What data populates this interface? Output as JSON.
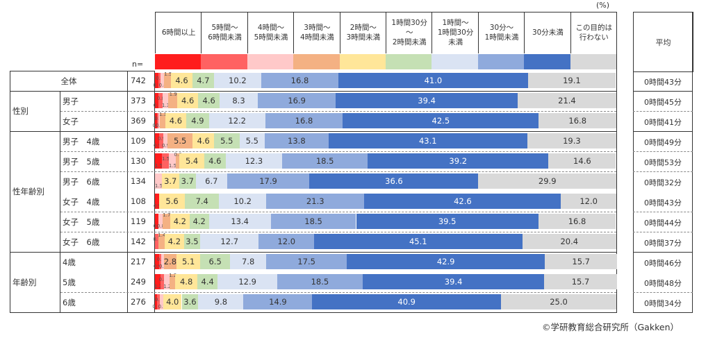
{
  "chart_data": {
    "type": "bar",
    "stacked": true,
    "orientation": "horizontal",
    "unit_label": "(%)",
    "n_label": "n=",
    "average_header": "平均",
    "categories": [
      {
        "label": "6時間以上",
        "color": "#ff1d1d"
      },
      {
        "label": "5時間～\n6時間未満",
        "color": "#ff6262"
      },
      {
        "label": "4時間～\n5時間未満",
        "color": "#ffc9c9"
      },
      {
        "label": "3時間～\n4時間未満",
        "color": "#f4b183"
      },
      {
        "label": "2時間～\n3時間未満",
        "color": "#ffe699"
      },
      {
        "label": "1時間30分\n～\n2時間未満",
        "color": "#c5e0b4"
      },
      {
        "label": "1時間～\n1時間30分\n未満",
        "color": "#dae3f3"
      },
      {
        "label": "30分～\n1時間未満",
        "color": "#8faadc"
      },
      {
        "label": "30分未満",
        "color": "#4472c4"
      },
      {
        "label": "この目的は\n行わない",
        "color": "#d9d9d9"
      }
    ],
    "groups": [
      {
        "label": "",
        "rows": [
          {
            "label": "全体",
            "n": 742,
            "values": [
              0.7,
              0.5,
              0.8,
              1.5,
              4.6,
              4.7,
              10.2,
              16.8,
              41.0,
              19.1
            ],
            "average": "0時間43分"
          }
        ]
      },
      {
        "label": "性別",
        "rows": [
          {
            "label": "男子",
            "n": 373,
            "values": [
              0.8,
              0.8,
              1.3,
              1.9,
              4.6,
              4.6,
              8.3,
              16.9,
              39.4,
              21.4
            ],
            "average": "0時間45分"
          },
          {
            "label": "女子",
            "n": 369,
            "values": [
              0.5,
              0.3,
              0.3,
              1.1,
              4.6,
              4.9,
              12.2,
              16.8,
              42.5,
              16.8
            ],
            "average": "0時間41分"
          }
        ]
      },
      {
        "label": "性年齢別",
        "rows": [
          {
            "label": "男子　4歳",
            "n": 109,
            "values": [
              0.9,
              0.9,
              0.9,
              5.5,
              4.6,
              5.5,
              5.5,
              13.8,
              43.1,
              19.3
            ],
            "average": "0時間49分"
          },
          {
            "label": "男子　5歳",
            "n": 130,
            "values": [
              1.5,
              1.5,
              1.5,
              0.8,
              5.4,
              4.6,
              12.3,
              18.5,
              39.2,
              14.6
            ],
            "average": "0時間53分"
          },
          {
            "label": "男子　6歳",
            "n": 134,
            "values": [
              0,
              0,
              1.5,
              0,
              3.7,
              3.7,
              6.7,
              17.9,
              36.6,
              29.9
            ],
            "average": "0時間32分"
          },
          {
            "label": "女子　4歳",
            "n": 108,
            "values": [
              0.9,
              0,
              0,
              0,
              5.6,
              7.4,
              10.2,
              21.3,
              42.6,
              12.0
            ],
            "average": "0時間43分"
          },
          {
            "label": "女子　5歳",
            "n": 119,
            "values": [
              0.8,
              0,
              0.8,
              1.7,
              4.2,
              4.2,
              13.4,
              18.5,
              39.5,
              16.8
            ],
            "average": "0時間44分"
          },
          {
            "label": "女子　6歳",
            "n": 142,
            "values": [
              0,
              0.7,
              0,
              1.4,
              4.2,
              3.5,
              12.7,
              12.0,
              45.1,
              20.4
            ],
            "average": "0時間37分"
          }
        ]
      },
      {
        "label": "年齢別",
        "rows": [
          {
            "label": "4歳",
            "n": 217,
            "values": [
              0.9,
              0.5,
              0.5,
              2.8,
              5.1,
              6.5,
              7.8,
              17.5,
              42.9,
              15.7
            ],
            "average": "0時間46分"
          },
          {
            "label": "5歳",
            "n": 249,
            "values": [
              1.2,
              0.8,
              1.2,
              1.2,
              4.8,
              4.4,
              12.9,
              18.5,
              39.4,
              15.7
            ],
            "average": "0時間48分"
          },
          {
            "label": "6歳",
            "n": 276,
            "values": [
              0.4,
              0.7,
              0.7,
              0,
              4.0,
              3.6,
              9.8,
              14.9,
              40.9,
              25.0
            ],
            "average": "0時間34分"
          }
        ]
      }
    ],
    "xlim": [
      0,
      100
    ]
  },
  "copyright": "©学研教育総合研究所（Gakken）"
}
